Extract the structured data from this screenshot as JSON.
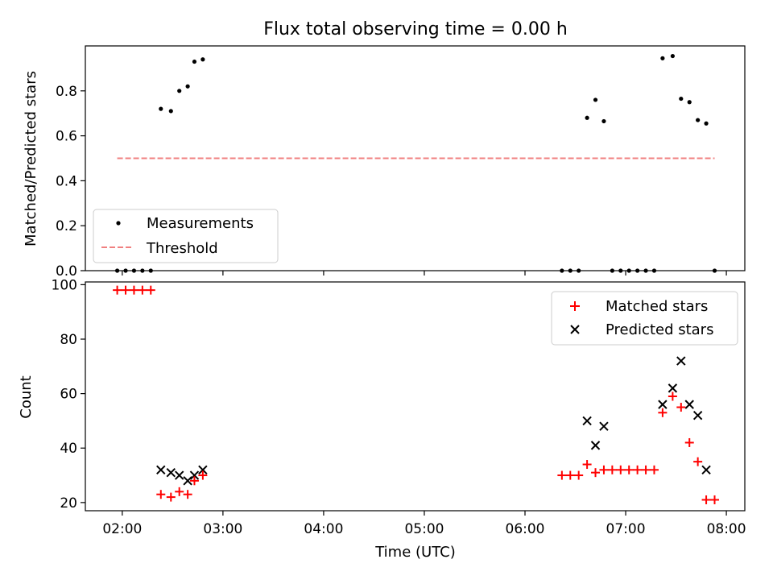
{
  "chart_data": [
    {
      "type": "scatter",
      "title": "Flux total observing time = 0.00 h",
      "xlabel": "",
      "ylabel": "Matched/Predicted stars",
      "xlim": [
        "01:38",
        "08:11"
      ],
      "ylim": [
        0.0,
        1.0
      ],
      "yticks": [
        0.0,
        0.2,
        0.4,
        0.6,
        0.8
      ],
      "ytick_labels": [
        "0.0",
        "0.2",
        "0.4",
        "0.6",
        "0.8"
      ],
      "grid": false,
      "legend_position": "lower-left",
      "series": [
        {
          "name": "Measurements",
          "marker": "dot",
          "color": "#000000",
          "points": [
            {
              "x": "01:57",
              "y": 0.0
            },
            {
              "x": "02:02",
              "y": 0.0
            },
            {
              "x": "02:07",
              "y": 0.0
            },
            {
              "x": "02:12",
              "y": 0.0
            },
            {
              "x": "02:17",
              "y": 0.0
            },
            {
              "x": "02:23",
              "y": 0.72
            },
            {
              "x": "02:29",
              "y": 0.71
            },
            {
              "x": "02:34",
              "y": 0.8
            },
            {
              "x": "02:39",
              "y": 0.82
            },
            {
              "x": "02:43",
              "y": 0.93
            },
            {
              "x": "02:48",
              "y": 0.94
            },
            {
              "x": "06:22",
              "y": 0.0
            },
            {
              "x": "06:27",
              "y": 0.0
            },
            {
              "x": "06:32",
              "y": 0.0
            },
            {
              "x": "06:37",
              "y": 0.68
            },
            {
              "x": "06:42",
              "y": 0.76
            },
            {
              "x": "06:47",
              "y": 0.665
            },
            {
              "x": "06:52",
              "y": 0.0
            },
            {
              "x": "06:57",
              "y": 0.0
            },
            {
              "x": "07:02",
              "y": 0.0
            },
            {
              "x": "07:07",
              "y": 0.0
            },
            {
              "x": "07:12",
              "y": 0.0
            },
            {
              "x": "07:17",
              "y": 0.0
            },
            {
              "x": "07:22",
              "y": 0.945
            },
            {
              "x": "07:28",
              "y": 0.955
            },
            {
              "x": "07:33",
              "y": 0.765
            },
            {
              "x": "07:38",
              "y": 0.75
            },
            {
              "x": "07:43",
              "y": 0.67
            },
            {
              "x": "07:48",
              "y": 0.655
            },
            {
              "x": "07:53",
              "y": 0.0
            }
          ]
        },
        {
          "name": "Threshold",
          "style": "dashed-line",
          "color": "#f08080",
          "points": [
            {
              "x": "01:57",
              "y": 0.5
            },
            {
              "x": "07:53",
              "y": 0.5
            }
          ]
        }
      ]
    },
    {
      "type": "scatter",
      "title": "",
      "xlabel": "Time (UTC)",
      "ylabel": "Count",
      "xlim": [
        "01:38",
        "08:11"
      ],
      "ylim": [
        17,
        101
      ],
      "yticks": [
        20,
        40,
        60,
        80,
        100
      ],
      "ytick_labels": [
        "20",
        "40",
        "60",
        "80",
        "100"
      ],
      "xticks": [
        "02:00",
        "03:00",
        "04:00",
        "05:00",
        "06:00",
        "07:00",
        "08:00"
      ],
      "xtick_labels": [
        "02:00",
        "03:00",
        "04:00",
        "05:00",
        "06:00",
        "07:00",
        "08:00"
      ],
      "grid": false,
      "legend_position": "upper-right",
      "series": [
        {
          "name": "Matched stars",
          "marker": "plus",
          "color": "#ff0000",
          "points": [
            {
              "x": "01:57",
              "y": 98
            },
            {
              "x": "02:02",
              "y": 98
            },
            {
              "x": "02:07",
              "y": 98
            },
            {
              "x": "02:12",
              "y": 98
            },
            {
              "x": "02:17",
              "y": 98
            },
            {
              "x": "02:23",
              "y": 23
            },
            {
              "x": "02:29",
              "y": 22
            },
            {
              "x": "02:34",
              "y": 24
            },
            {
              "x": "02:39",
              "y": 23
            },
            {
              "x": "02:43",
              "y": 28
            },
            {
              "x": "02:48",
              "y": 30
            },
            {
              "x": "06:22",
              "y": 30
            },
            {
              "x": "06:27",
              "y": 30
            },
            {
              "x": "06:32",
              "y": 30
            },
            {
              "x": "06:37",
              "y": 34
            },
            {
              "x": "06:42",
              "y": 31
            },
            {
              "x": "06:47",
              "y": 32
            },
            {
              "x": "06:52",
              "y": 32
            },
            {
              "x": "06:57",
              "y": 32
            },
            {
              "x": "07:02",
              "y": 32
            },
            {
              "x": "07:07",
              "y": 32
            },
            {
              "x": "07:12",
              "y": 32
            },
            {
              "x": "07:17",
              "y": 32
            },
            {
              "x": "07:22",
              "y": 53
            },
            {
              "x": "07:28",
              "y": 59
            },
            {
              "x": "07:33",
              "y": 55
            },
            {
              "x": "07:38",
              "y": 42
            },
            {
              "x": "07:43",
              "y": 35
            },
            {
              "x": "07:48",
              "y": 21
            },
            {
              "x": "07:53",
              "y": 21
            }
          ]
        },
        {
          "name": "Predicted stars",
          "marker": "x",
          "color": "#000000",
          "points": [
            {
              "x": "02:23",
              "y": 32
            },
            {
              "x": "02:29",
              "y": 31
            },
            {
              "x": "02:34",
              "y": 30
            },
            {
              "x": "02:39",
              "y": 28
            },
            {
              "x": "02:43",
              "y": 30
            },
            {
              "x": "02:48",
              "y": 32
            },
            {
              "x": "06:37",
              "y": 50
            },
            {
              "x": "06:42",
              "y": 41
            },
            {
              "x": "06:47",
              "y": 48
            },
            {
              "x": "07:22",
              "y": 56
            },
            {
              "x": "07:28",
              "y": 62
            },
            {
              "x": "07:33",
              "y": 72
            },
            {
              "x": "07:38",
              "y": 56
            },
            {
              "x": "07:43",
              "y": 52
            },
            {
              "x": "07:48",
              "y": 32
            }
          ]
        }
      ]
    }
  ]
}
